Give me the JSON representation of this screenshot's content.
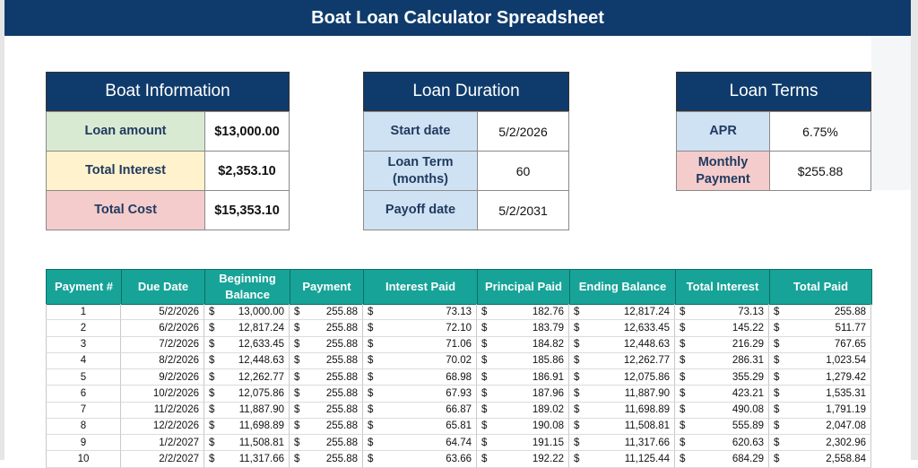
{
  "title": "Boat Loan Calculator Spreadsheet",
  "currency_symbol": "$",
  "panels": [
    {
      "title": "Boat Information",
      "bold_values": true,
      "fills": [
        "#d9ead3",
        "#fff2cc",
        "#f4cccc"
      ],
      "rows": [
        [
          "Loan amount",
          "$13,000.00"
        ],
        [
          "Total Interest",
          "$2,353.10"
        ],
        [
          "Total Cost",
          "$15,353.10"
        ]
      ]
    },
    {
      "title": "Loan Duration",
      "bold_values": false,
      "fills": [
        "#cfe2f3",
        "#cfe2f3",
        "#cfe2f3"
      ],
      "rows": [
        [
          "Start date",
          "5/2/2026"
        ],
        [
          "Loan Term (months)",
          "60"
        ],
        [
          "Payoff date",
          "5/2/2031"
        ]
      ]
    },
    {
      "title": "Loan Terms",
      "bold_values": false,
      "fills": [
        "#cfe2f3",
        "#f4cccc"
      ],
      "rows": [
        [
          "APR",
          "6.75%"
        ],
        [
          "Monthly Payment",
          "$255.88"
        ]
      ]
    }
  ],
  "table": {
    "headers": [
      "Payment #",
      "Due Date",
      "Beginning Balance",
      "Payment",
      "Interest Paid",
      "Principal Paid",
      "Ending Balance",
      "Total Interest",
      "Total Paid"
    ],
    "rows": [
      [
        "1",
        "5/2/2026",
        "13,000.00",
        "255.88",
        "73.13",
        "182.76",
        "12,817.24",
        "73.13",
        "255.88"
      ],
      [
        "2",
        "6/2/2026",
        "12,817.24",
        "255.88",
        "72.10",
        "183.79",
        "12,633.45",
        "145.22",
        "511.77"
      ],
      [
        "3",
        "7/2/2026",
        "12,633.45",
        "255.88",
        "71.06",
        "184.82",
        "12,448.63",
        "216.29",
        "767.65"
      ],
      [
        "4",
        "8/2/2026",
        "12,448.63",
        "255.88",
        "70.02",
        "185.86",
        "12,262.77",
        "286.31",
        "1,023.54"
      ],
      [
        "5",
        "9/2/2026",
        "12,262.77",
        "255.88",
        "68.98",
        "186.91",
        "12,075.86",
        "355.29",
        "1,279.42"
      ],
      [
        "6",
        "10/2/2026",
        "12,075.86",
        "255.88",
        "67.93",
        "187.96",
        "11,887.90",
        "423.21",
        "1,535.31"
      ],
      [
        "7",
        "11/2/2026",
        "11,887.90",
        "255.88",
        "66.87",
        "189.02",
        "11,698.89",
        "490.08",
        "1,791.19"
      ],
      [
        "8",
        "12/2/2026",
        "11,698.89",
        "255.88",
        "65.81",
        "190.08",
        "11,508.81",
        "555.89",
        "2,047.08"
      ],
      [
        "9",
        "1/2/2027",
        "11,508.81",
        "255.88",
        "64.74",
        "191.15",
        "11,317.66",
        "620.63",
        "2,302.96"
      ],
      [
        "10",
        "2/2/2027",
        "11,317.66",
        "255.88",
        "63.66",
        "192.22",
        "11,125.44",
        "684.29",
        "2,558.84"
      ]
    ]
  }
}
